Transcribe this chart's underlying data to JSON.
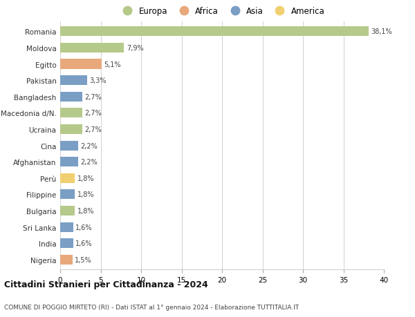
{
  "countries": [
    "Romania",
    "Moldova",
    "Egitto",
    "Pakistan",
    "Bangladesh",
    "Macedonia d/N.",
    "Ucraina",
    "Cina",
    "Afghanistan",
    "Perù",
    "Filippine",
    "Bulgaria",
    "Sri Lanka",
    "India",
    "Nigeria"
  ],
  "values": [
    38.1,
    7.9,
    5.1,
    3.3,
    2.7,
    2.7,
    2.7,
    2.2,
    2.2,
    1.8,
    1.8,
    1.8,
    1.6,
    1.6,
    1.5
  ],
  "labels": [
    "38,1%",
    "7,9%",
    "5,1%",
    "3,3%",
    "2,7%",
    "2,7%",
    "2,7%",
    "2,2%",
    "2,2%",
    "1,8%",
    "1,8%",
    "1,8%",
    "1,6%",
    "1,6%",
    "1,5%"
  ],
  "continent": [
    "Europa",
    "Europa",
    "Africa",
    "Asia",
    "Asia",
    "Europa",
    "Europa",
    "Asia",
    "Asia",
    "America",
    "Asia",
    "Europa",
    "Asia",
    "Asia",
    "Africa"
  ],
  "colors": {
    "Europa": "#b5c98a",
    "Africa": "#e8a87c",
    "Asia": "#7a9ec4",
    "America": "#f0d070"
  },
  "legend_order": [
    "Europa",
    "Africa",
    "Asia",
    "America"
  ],
  "title": "Cittadini Stranieri per Cittadinanza - 2024",
  "subtitle": "COMUNE DI POGGIO MIRTETO (RI) - Dati ISTAT al 1° gennaio 2024 - Elaborazione TUTTITALIA.IT",
  "xlim": [
    0,
    40
  ],
  "xticks": [
    0,
    5,
    10,
    15,
    20,
    25,
    30,
    35,
    40
  ],
  "background_color": "#ffffff",
  "grid_color": "#d0d0d0"
}
